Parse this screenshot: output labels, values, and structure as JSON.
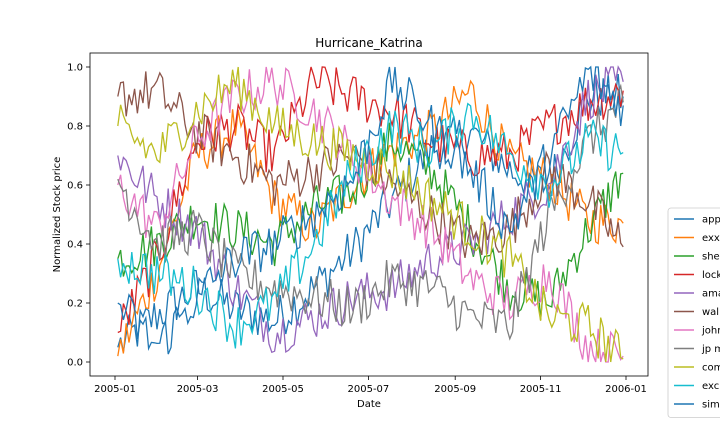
{
  "chart_data": {
    "type": "line",
    "title": "Hurricane_Katrina",
    "xlabel": "Date",
    "ylabel": "Normalized Stock price",
    "x_range": [
      "2005-01-01",
      "2006-01-01"
    ],
    "ylim": [
      0.0,
      1.0
    ],
    "x_ticks": [
      "2005-01",
      "2005-03",
      "2005-05",
      "2005-07",
      "2005-09",
      "2005-11",
      "2006-01"
    ],
    "y_ticks": [
      "0.0",
      "0.2",
      "0.4",
      "0.6",
      "0.8",
      "1.0"
    ],
    "grid": false,
    "legend_position": "right",
    "x_dates": [
      "2005-01-03",
      "2005-01-31",
      "2005-02-28",
      "2005-03-28",
      "2005-04-25",
      "2005-05-23",
      "2005-06-20",
      "2005-07-18",
      "2005-08-15",
      "2005-09-12",
      "2005-10-10",
      "2005-11-07",
      "2005-12-05",
      "2005-12-30"
    ],
    "series": [
      {
        "name": "app",
        "color": "#1f77b4",
        "values": [
          0.05,
          0.16,
          0.25,
          0.18,
          0.14,
          0.25,
          0.38,
          0.55,
          0.72,
          0.78,
          0.65,
          0.6,
          0.9,
          0.9
        ]
      },
      {
        "name": "exx",
        "color": "#ff7f0e",
        "values": [
          0.02,
          0.3,
          0.7,
          0.8,
          0.55,
          0.45,
          0.6,
          0.72,
          0.78,
          0.92,
          0.68,
          0.62,
          0.48,
          0.47
        ]
      },
      {
        "name": "she",
        "color": "#2ca02c",
        "values": [
          0.35,
          0.4,
          0.5,
          0.45,
          0.4,
          0.52,
          0.58,
          0.75,
          0.65,
          0.45,
          0.25,
          0.2,
          0.45,
          0.64
        ]
      },
      {
        "name": "lock",
        "color": "#d62728",
        "values": [
          0.1,
          0.35,
          0.75,
          0.8,
          0.7,
          0.95,
          0.9,
          0.85,
          0.75,
          0.7,
          0.7,
          0.8,
          0.88,
          0.92
        ]
      },
      {
        "name": "ama",
        "color": "#9467bd",
        "values": [
          0.7,
          0.55,
          0.45,
          0.25,
          0.1,
          0.15,
          0.22,
          0.25,
          0.35,
          0.4,
          0.5,
          0.6,
          0.9,
          0.95
        ]
      },
      {
        "name": "wal",
        "color": "#8c564b",
        "values": [
          0.9,
          0.92,
          0.78,
          0.7,
          0.6,
          0.65,
          0.7,
          0.6,
          0.5,
          0.4,
          0.45,
          0.65,
          0.55,
          0.39
        ]
      },
      {
        "name": "john",
        "color": "#e377c2",
        "values": [
          0.6,
          0.45,
          0.75,
          0.9,
          0.95,
          0.85,
          0.7,
          0.55,
          0.45,
          0.28,
          0.2,
          0.3,
          0.05,
          0.02
        ]
      },
      {
        "name": "jp m",
        "color": "#7f7f7f",
        "values": [
          0.62,
          0.4,
          0.45,
          0.3,
          0.25,
          0.22,
          0.18,
          0.28,
          0.25,
          0.15,
          0.12,
          0.5,
          0.75,
          0.88
        ]
      },
      {
        "name": "com",
        "color": "#bcbd22",
        "values": [
          0.8,
          0.7,
          0.85,
          0.95,
          0.8,
          0.75,
          0.7,
          0.65,
          0.55,
          0.45,
          0.35,
          0.15,
          0.12,
          0.01
        ]
      },
      {
        "name": "exc",
        "color": "#17becf",
        "values": [
          0.35,
          0.3,
          0.25,
          0.12,
          0.2,
          0.4,
          0.65,
          0.8,
          0.72,
          0.85,
          0.7,
          0.6,
          0.75,
          0.71
        ]
      },
      {
        "name": "sim",
        "color": "#1f77b4",
        "values": [
          0.2,
          0.05,
          0.22,
          0.35,
          0.4,
          0.5,
          0.62,
          0.95,
          0.8,
          0.65,
          0.45,
          0.7,
          0.98,
          0.87
        ]
      }
    ]
  }
}
